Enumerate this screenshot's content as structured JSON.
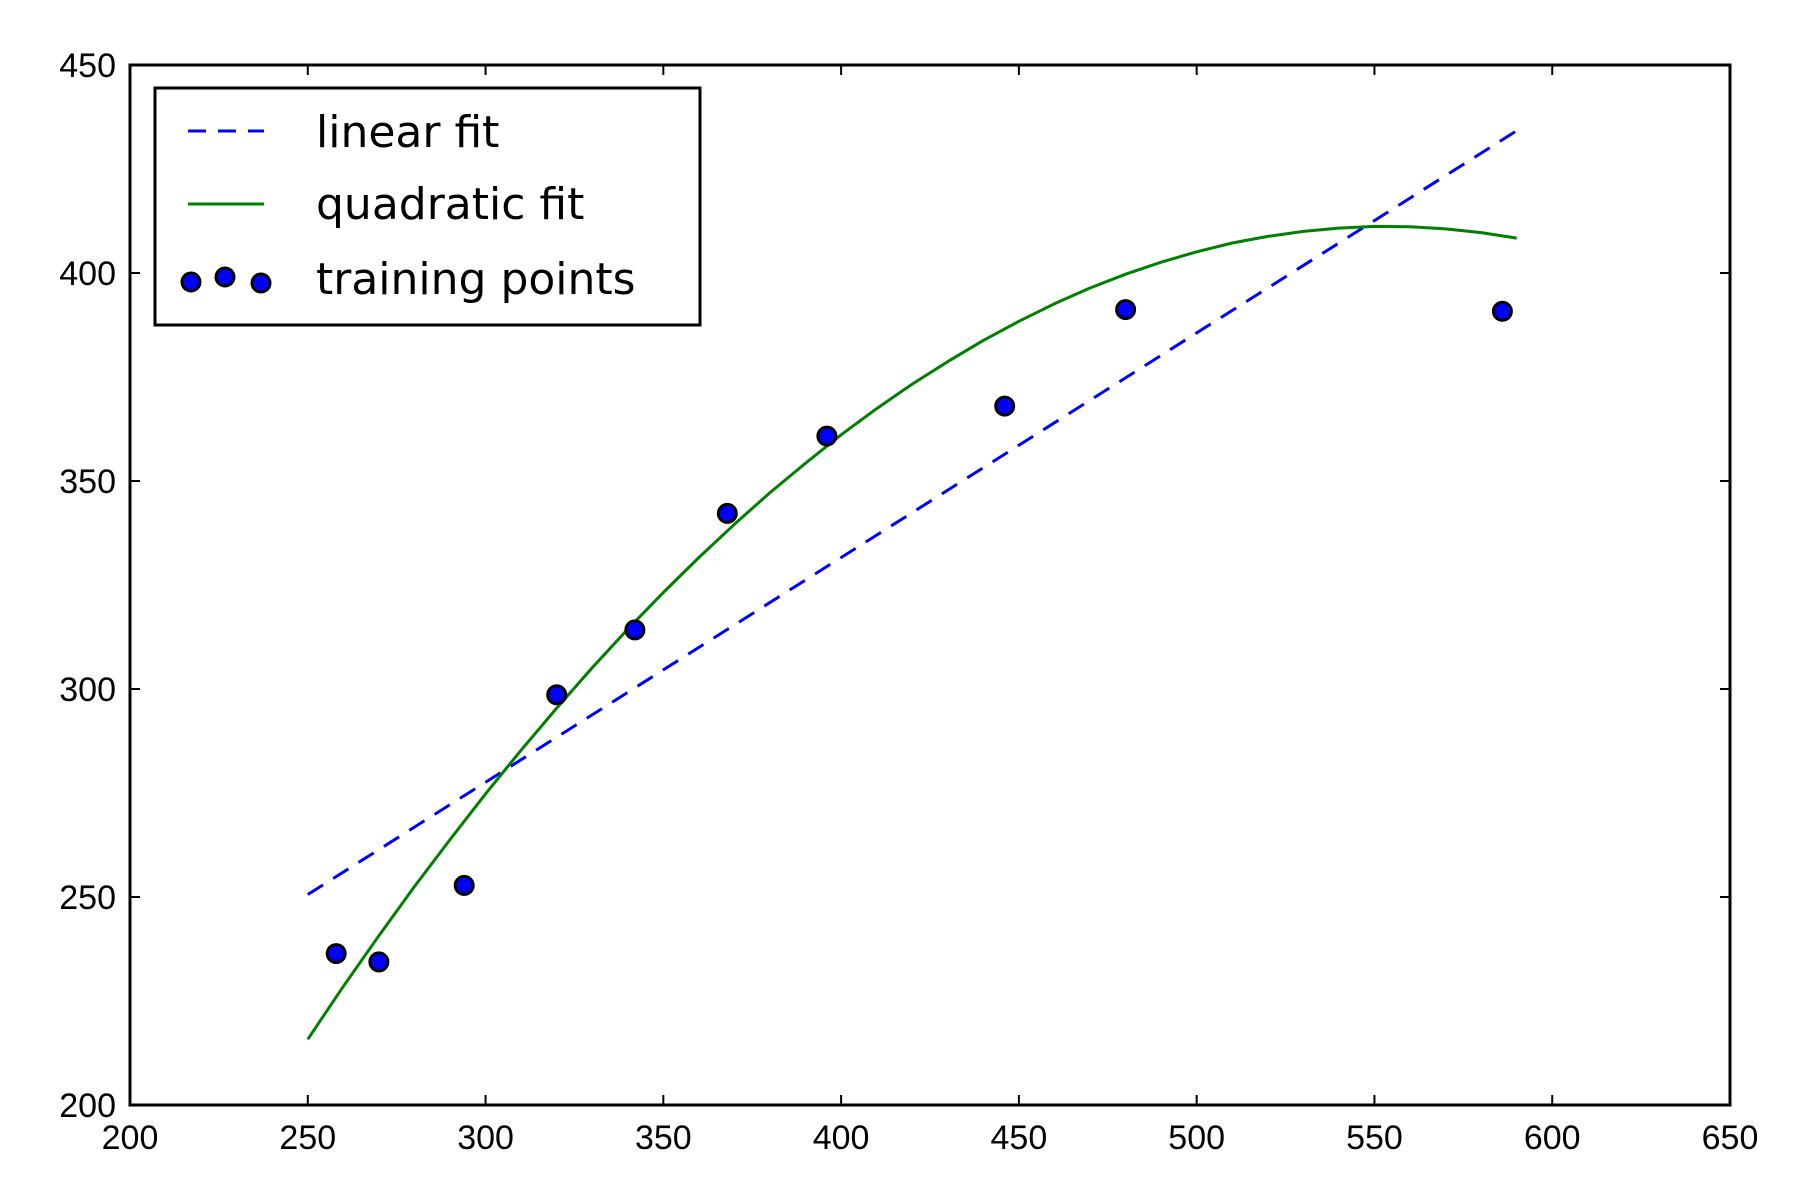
{
  "chart_data": {
    "type": "scatter",
    "title": "",
    "xlabel": "",
    "ylabel": "",
    "xlim": [
      200,
      650
    ],
    "ylim": [
      200,
      450
    ],
    "xticks": [
      "200",
      "250",
      "300",
      "350",
      "400",
      "450",
      "500",
      "550",
      "600",
      "650"
    ],
    "yticks": [
      "200",
      "250",
      "300",
      "350",
      "400",
      "450"
    ],
    "grid": false,
    "legend_position": "top-left",
    "series": [
      {
        "name": "linear fit",
        "kind": "line",
        "style": "dashed",
        "color": "#0000ff",
        "x": [
          250,
          590
        ],
        "y": [
          250.6,
          434.2
        ]
      },
      {
        "name": "quadratic fit",
        "kind": "line",
        "style": "solid",
        "color": "#008000",
        "x": [
          250,
          260,
          270,
          280,
          290,
          300,
          310,
          320,
          330,
          340,
          350,
          360,
          370,
          380,
          390,
          400,
          410,
          420,
          430,
          440,
          450,
          460,
          470,
          480,
          490,
          500,
          510,
          520,
          530,
          540,
          550,
          560,
          570,
          580,
          590
        ],
        "y": [
          215.8,
          228.5,
          240.7,
          252.5,
          263.8,
          274.8,
          285.3,
          295.4,
          305.1,
          314.4,
          323.2,
          331.6,
          339.6,
          347.2,
          354.3,
          361.1,
          367.4,
          373.3,
          378.7,
          383.8,
          388.4,
          392.6,
          396.4,
          399.7,
          402.6,
          405.1,
          407.2,
          408.8,
          410.0,
          410.8,
          411.2,
          411.1,
          410.6,
          409.7,
          408.4
        ]
      },
      {
        "name": "training points",
        "kind": "scatter",
        "color": "#0000ff",
        "x": [
          258,
          270,
          294,
          320,
          342,
          368,
          396,
          446,
          480,
          586
        ],
        "y": [
          236.4,
          234.4,
          252.8,
          298.6,
          314.2,
          342.2,
          360.8,
          368.0,
          391.2,
          390.8
        ]
      }
    ]
  },
  "legend": {
    "items": [
      "linear fit",
      "quadratic fit",
      "training points"
    ]
  }
}
